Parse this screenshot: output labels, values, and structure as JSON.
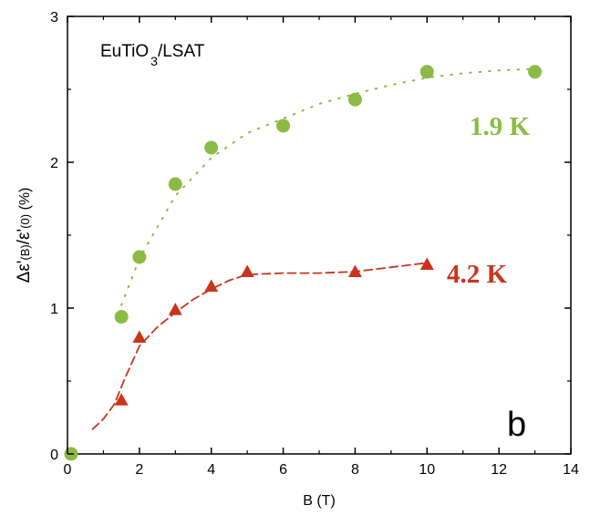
{
  "chart_data": {
    "type": "scatter",
    "title": "EuTiO",
    "title_sub": "3",
    "title_tail": "/LSAT",
    "panel_label": "b",
    "xlabel": "B (T)",
    "ylabel": {
      "main": "Δε'",
      "numer_arg": "(B)",
      "slash": "/ε'",
      "denom_arg": "(0)",
      "unit": " (%)"
    },
    "xlim": [
      0,
      14
    ],
    "ylim": [
      0,
      3
    ],
    "xticks": [
      "0",
      "2",
      "4",
      "6",
      "8",
      "10",
      "12",
      "14"
    ],
    "yticks": [
      "0",
      "1",
      "2",
      "3"
    ],
    "grid": false,
    "series": [
      {
        "name": "1.9 K",
        "marker": "circle",
        "color": "#8cba45",
        "line_style": "dotted",
        "x": [
          0.1,
          1.5,
          2.0,
          3.0,
          4.0,
          6.0,
          8.0,
          10.0,
          13.0
        ],
        "y": [
          0.0,
          0.94,
          1.35,
          1.85,
          2.1,
          2.25,
          2.43,
          2.62,
          2.62
        ],
        "fit_x": [
          1.5,
          2.0,
          3.0,
          4.0,
          5.0,
          6.0,
          7.0,
          8.0,
          9.0,
          10.0,
          11.0,
          12.0,
          13.0
        ],
        "fit_y": [
          1.02,
          1.34,
          1.77,
          2.03,
          2.2,
          2.3,
          2.4,
          2.47,
          2.53,
          2.58,
          2.61,
          2.63,
          2.64
        ]
      },
      {
        "name": "4.2 K",
        "marker": "triangle",
        "color": "#c8341c",
        "line_style": "dashed",
        "x": [
          1.5,
          2.0,
          3.0,
          4.0,
          5.0,
          8.0,
          10.0
        ],
        "y": [
          0.37,
          0.8,
          0.99,
          1.15,
          1.25,
          1.25,
          1.3
        ],
        "fit_x": [
          0.7,
          1.0,
          1.3,
          1.6,
          2.0,
          2.5,
          3.0,
          3.5,
          4.0,
          4.5,
          5.0,
          6.0,
          7.0,
          8.0,
          9.0,
          10.0
        ],
        "fit_y": [
          0.17,
          0.24,
          0.34,
          0.52,
          0.74,
          0.87,
          0.97,
          1.06,
          1.13,
          1.19,
          1.23,
          1.24,
          1.24,
          1.25,
          1.28,
          1.31
        ]
      }
    ]
  }
}
